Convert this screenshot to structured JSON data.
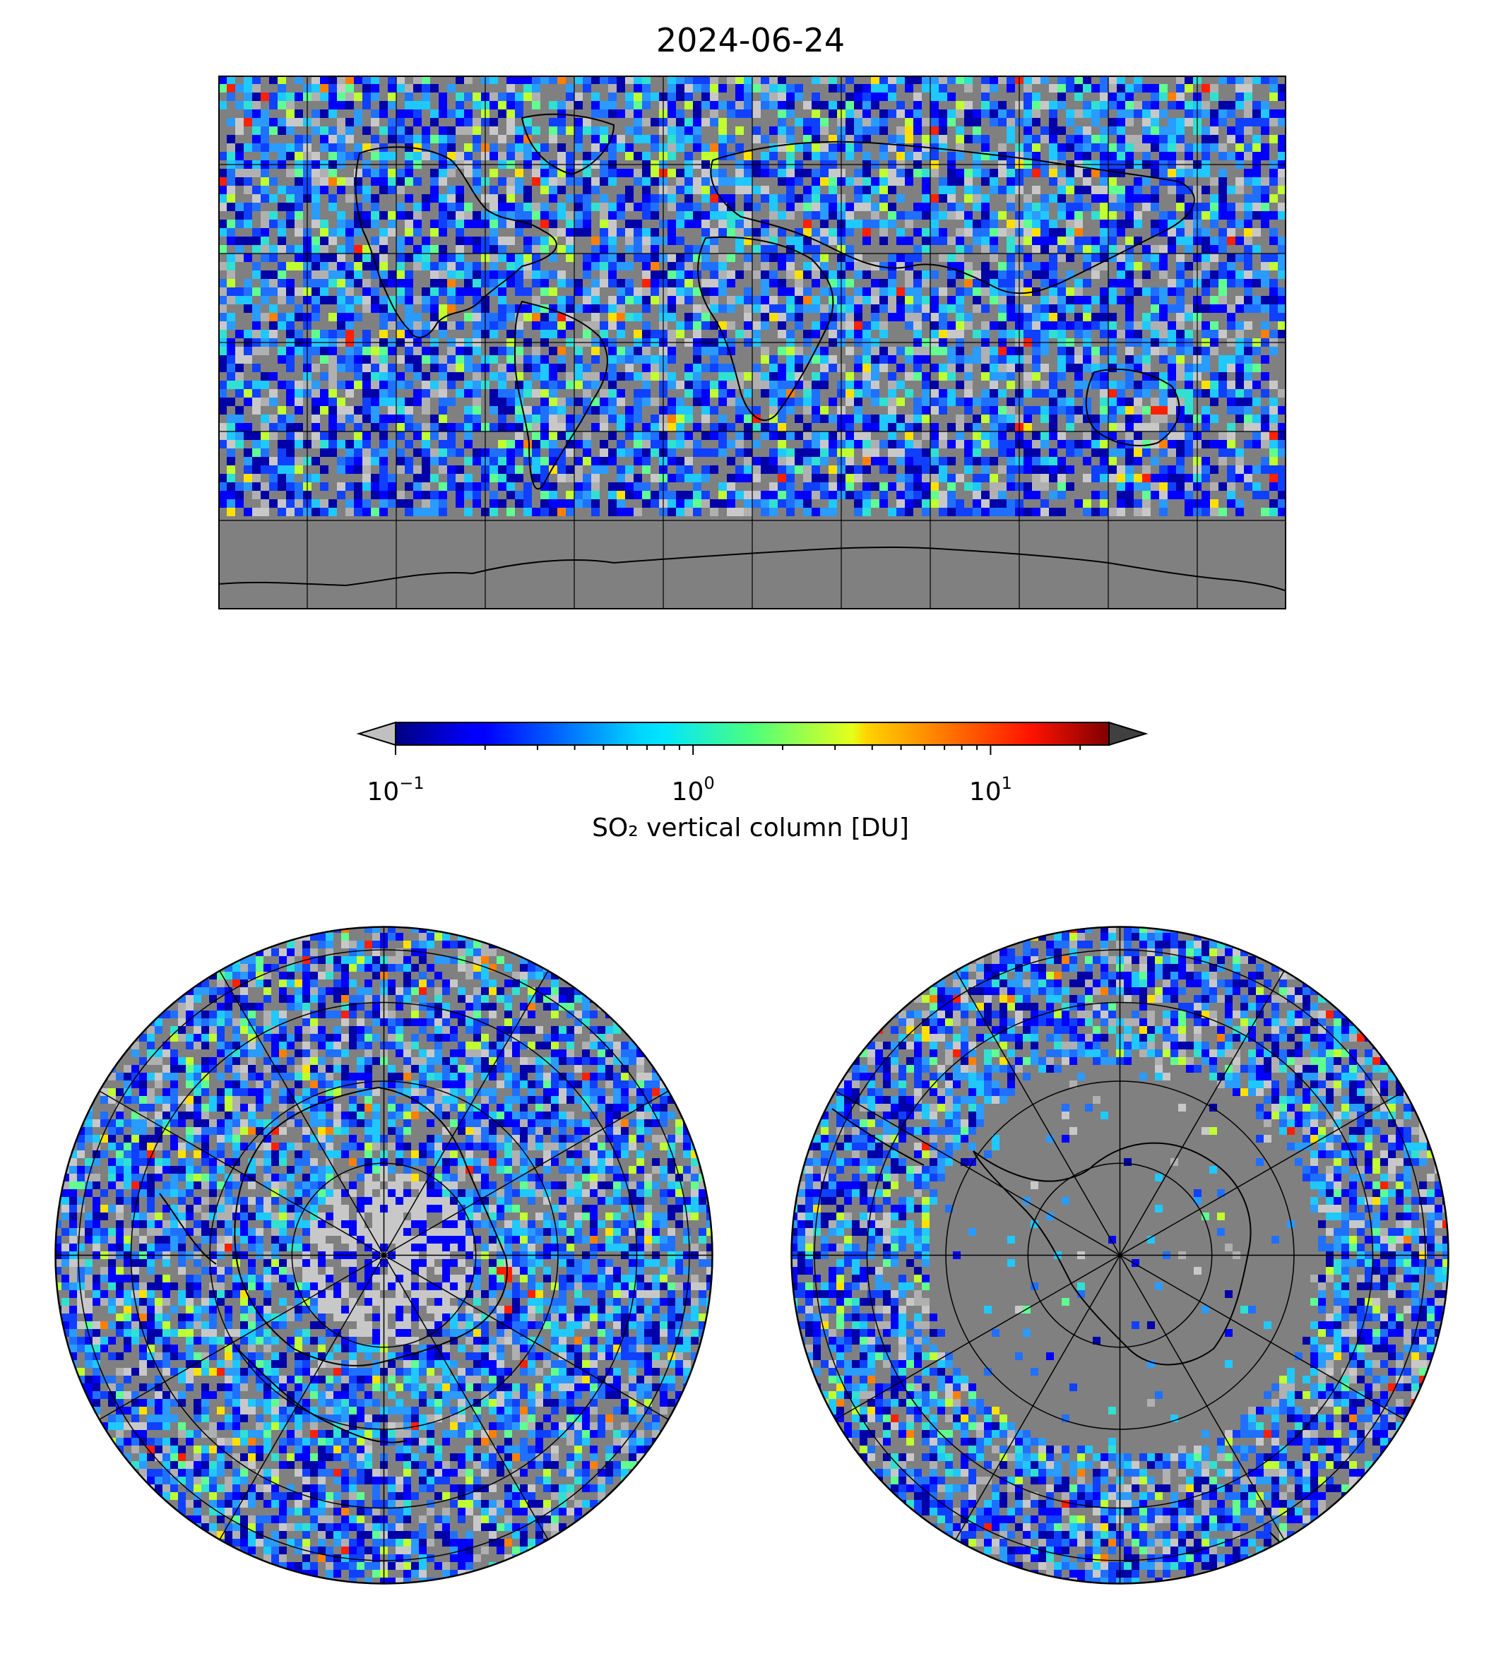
{
  "title": "2024-06-24",
  "colorbar": {
    "label": "SO₂ vertical column [DU]",
    "ticks": [
      {
        "base": "10",
        "exp": "−1",
        "value": 0.1
      },
      {
        "base": "10",
        "exp": "0",
        "value": 1
      },
      {
        "base": "10",
        "exp": "1",
        "value": 10
      }
    ],
    "scale": "log",
    "range": [
      0.1,
      25
    ],
    "colormap": "jet",
    "extend_low_color": "#c0c0c0",
    "extend_high_color": "#404040"
  },
  "maps": [
    {
      "name": "global",
      "projection": "plate-carree",
      "gridlines": "30-degree"
    },
    {
      "name": "north-polar",
      "projection": "north-polar-stereographic"
    },
    {
      "name": "south-polar",
      "projection": "south-polar-stereographic"
    }
  ],
  "colors": {
    "missing_data": "#808080",
    "background": "#ffffff",
    "coastline": "#000000",
    "gridline": "#000000"
  }
}
